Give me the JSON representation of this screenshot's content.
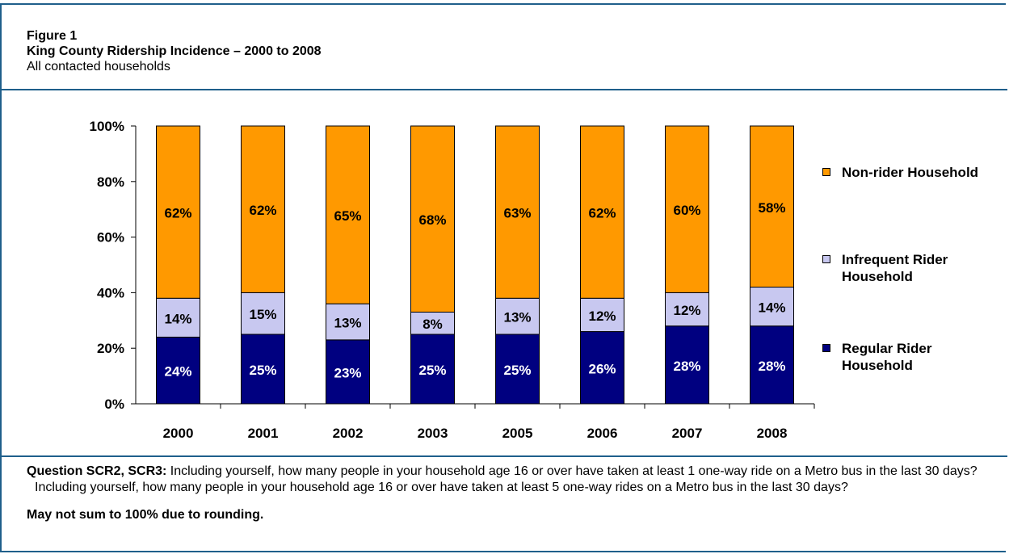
{
  "header": {
    "figure_label": "Figure 1",
    "title": "King County Ridership Incidence – 2000 to 2008",
    "subtitle": "All contacted households"
  },
  "chart_data": {
    "type": "bar",
    "stacked": true,
    "categories": [
      "2000",
      "2001",
      "2002",
      "2003",
      "2005",
      "2006",
      "2007",
      "2008"
    ],
    "series": [
      {
        "name": "Regular Rider Household",
        "values": [
          24,
          25,
          23,
          25,
          25,
          26,
          28,
          28
        ],
        "color": "#000080",
        "label_color": "#ffffff"
      },
      {
        "name": "Infrequent Rider Household",
        "values": [
          14,
          15,
          13,
          8,
          13,
          12,
          12,
          14
        ],
        "color": "#c8c8f0",
        "label_color": "#000000"
      },
      {
        "name": "Non-rider Household",
        "values": [
          62,
          62,
          65,
          68,
          63,
          62,
          60,
          58
        ],
        "color": "#ff9900",
        "label_color": "#000000"
      }
    ],
    "legend_order": [
      "Non-rider Household",
      "Infrequent Rider Household",
      "Regular Rider Household"
    ],
    "ylim": [
      0,
      100
    ],
    "yticks": [
      "0%",
      "20%",
      "40%",
      "60%",
      "80%",
      "100%"
    ],
    "value_suffix": "%",
    "legend_position": "right",
    "grid": false
  },
  "notes": {
    "question_label": "Question SCR2, SCR3:",
    "question_text": "  Including yourself, how many people in your household age 16 or over have taken at least 1 one-way ride on a Metro bus in the last 30 days?  Including yourself, how many people in your household age 16 or over have taken at least 5 one-way rides on a Metro bus in the last 30 days?",
    "footnote": "May not sum to 100% due to rounding."
  },
  "colors": {
    "border": "#1f5f8b"
  }
}
